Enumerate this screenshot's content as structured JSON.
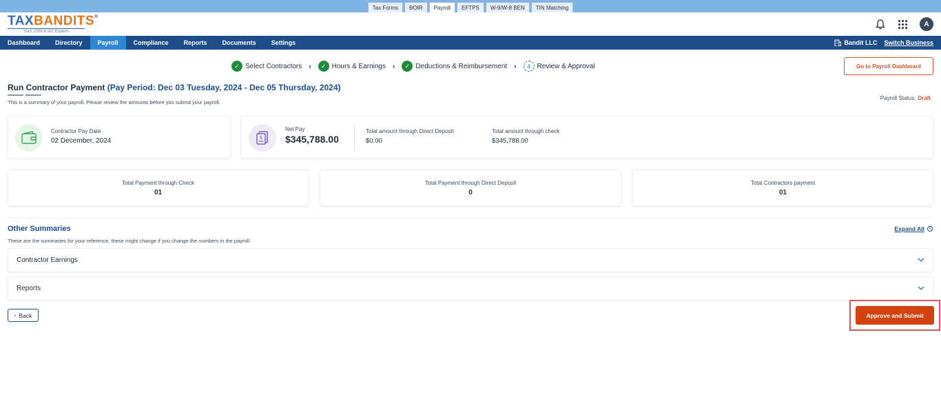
{
  "product_tabs": [
    {
      "label": "Tax Forms",
      "active": false
    },
    {
      "label": "BOIR",
      "active": false
    },
    {
      "label": "Payroll",
      "active": true
    },
    {
      "label": "EFTPS",
      "active": false
    },
    {
      "label": "W-9/W-8 BEN",
      "active": false
    },
    {
      "label": "TIN Matching",
      "active": false
    }
  ],
  "header": {
    "logo_part1": "TAX",
    "logo_part2": "BANDITS",
    "logo_reg": "®",
    "logo_tagline": "Your 1099 & W2 Experts",
    "avatar_initial": "A"
  },
  "nav": {
    "items": [
      "Dashboard",
      "Directory",
      "Payroll",
      "Compliance",
      "Reports",
      "Documents",
      "Settings"
    ],
    "active_index": 2,
    "business_name": "Bandit LLC",
    "switch_label": "Switch Business"
  },
  "stepper": {
    "steps": [
      "Select Contractors",
      "Hours & Earnings",
      "Deductions & Reimbursement",
      "Review & Approval"
    ],
    "current_step_number": "4",
    "dashboard_button": "Go to Payroll Dashboard"
  },
  "page": {
    "title": "Run Contractor Payment",
    "period": "(Pay Period: Dec 03 Tuesday, 2024 - Dec 05 Thursday, 2024)",
    "subtitle": "This is a summary of your payroll. Please review the amounts before you submit your payroll.",
    "status_label": "Payroll Status:",
    "status_value": "Draft"
  },
  "pay_date_card": {
    "label": "Contractor Pay Date",
    "value": "02 December, 2024"
  },
  "net_pay_card": {
    "label": "Net Pay",
    "value": "$345,788.00",
    "direct_deposit_label": "Total amount through Direct Deposit",
    "direct_deposit_value": "$0.00",
    "check_label": "Total amount through check",
    "check_value": "$345,788.00"
  },
  "totals": [
    {
      "label": "Total Payment through Check",
      "value": "01"
    },
    {
      "label": "Total Payment through Direct Deposit",
      "value": "0"
    },
    {
      "label": "Total Contractors payment",
      "value": "01"
    }
  ],
  "other_summaries": {
    "title": "Other Summaries",
    "subtitle": "These are the summaries for your reference, these might change if you change the numbers in the payroll.",
    "expand_all": "Expand All",
    "sections": [
      "Contractor Earnings",
      "Reports"
    ]
  },
  "actions": {
    "back": "Back",
    "submit": "Approve and Submit"
  },
  "colors": {
    "nav_bg": "#1d4e89",
    "nav_active": "#2f86d6",
    "success": "#1f8a3b",
    "accent_orange": "#d2430f",
    "highlight_red": "#e05555"
  }
}
